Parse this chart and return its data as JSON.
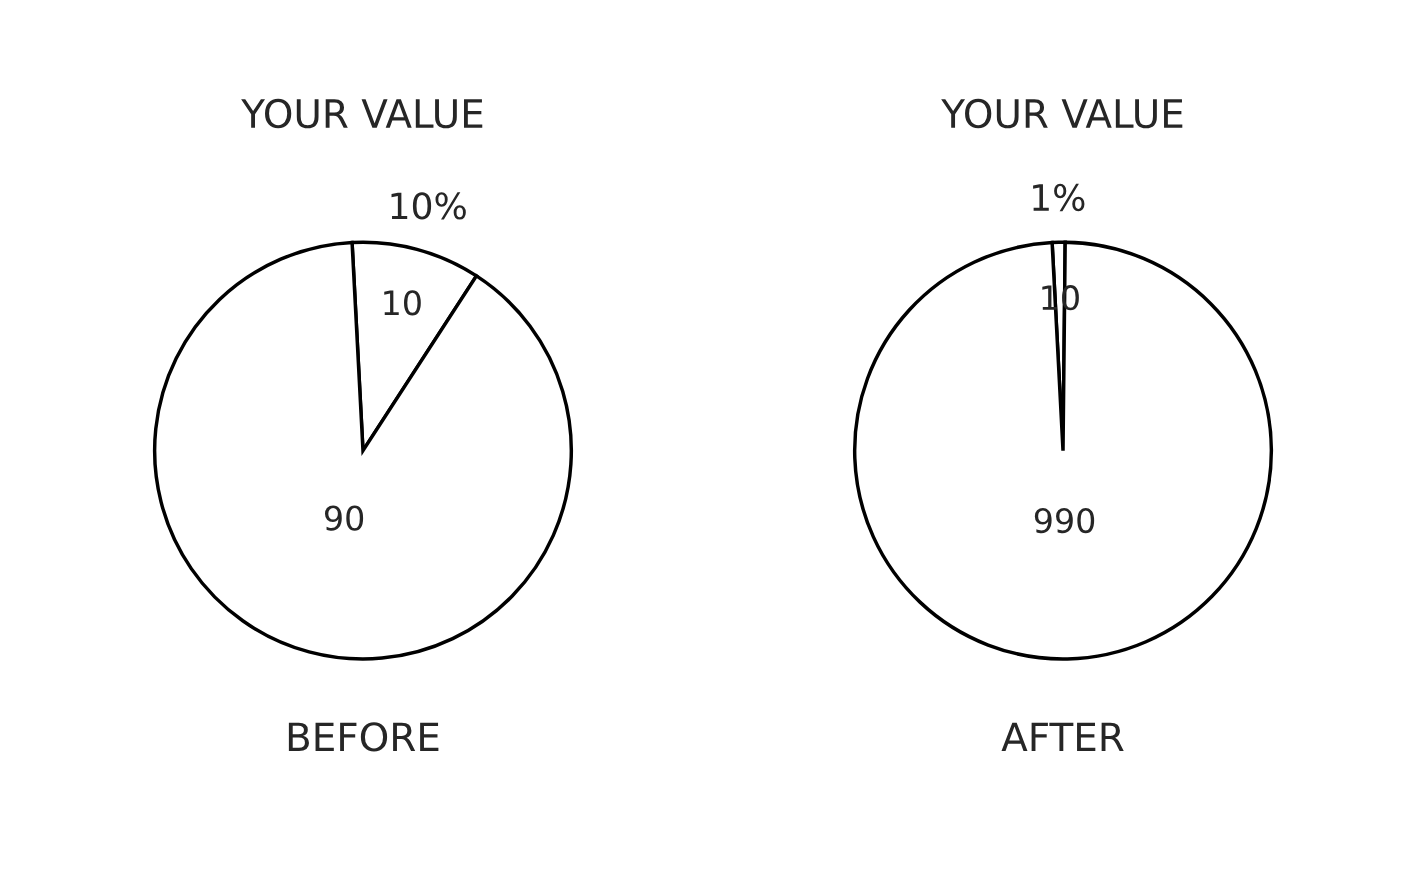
{
  "chart_data": [
    {
      "type": "pie",
      "title": "YOUR VALUE",
      "xlabel": "BEFORE",
      "categories": [
        null,
        null
      ],
      "values": [
        10,
        90
      ],
      "colors": [
        "#ffffff",
        "#ffffff"
      ],
      "data_labels": true,
      "annotations": [
        "10%"
      ]
    },
    {
      "type": "pie",
      "title": "YOUR VALUE",
      "xlabel": "AFTER",
      "categories": [
        null,
        null
      ],
      "values": [
        10,
        990
      ],
      "colors": [
        "#ffffff",
        "#ffffff"
      ],
      "data_labels": true,
      "annotations": [
        "1%"
      ]
    }
  ]
}
